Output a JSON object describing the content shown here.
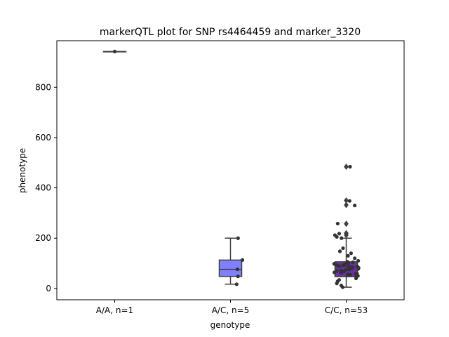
{
  "chart_data": {
    "type": "box",
    "title": "markerQTL plot for SNP rs4464459 and marker_3320",
    "xlabel": "genotype",
    "ylabel": "phenotype",
    "ylim": [
      -45,
      985
    ],
    "yticks": [
      0,
      200,
      400,
      600,
      800
    ],
    "categories": [
      "A/A, n=1",
      "A/C, n=5",
      "C/C, n=53"
    ],
    "grid": false,
    "groups": [
      {
        "label": "A/A, n=1",
        "color": "#3d3dcc",
        "box": {
          "q1": 942,
          "median": 942,
          "q3": 942,
          "whisker_low": 942,
          "whisker_high": 942
        },
        "outliers": [],
        "points": [
          942
        ]
      },
      {
        "label": "A/C, n=5",
        "color": "#8080ff",
        "box": {
          "q1": 48,
          "median": 76,
          "q3": 113,
          "whisker_low": 17,
          "whisker_high": 200
        },
        "outliers": [],
        "points": [
          200,
          113,
          76,
          48,
          17
        ]
      },
      {
        "label": "C/C, n=53",
        "color": "#6b2fa8",
        "box": {
          "q1": 47,
          "median": 88,
          "q3": 106,
          "whisker_low": 5,
          "whisker_high": 200
        },
        "outliers": [
          484,
          350,
          332,
          257,
          220,
          212
        ],
        "points": [
          484,
          348,
          330,
          258,
          218,
          212,
          205,
          200,
          160,
          148,
          140,
          130,
          120,
          110,
          106,
          104,
          102,
          100,
          98,
          96,
          94,
          92,
          90,
          89,
          88,
          87,
          86,
          85,
          84,
          82,
          80,
          78,
          76,
          74,
          72,
          70,
          68,
          66,
          64,
          62,
          60,
          58,
          56,
          54,
          52,
          50,
          47,
          40,
          34,
          28,
          20,
          12,
          5
        ]
      }
    ]
  }
}
